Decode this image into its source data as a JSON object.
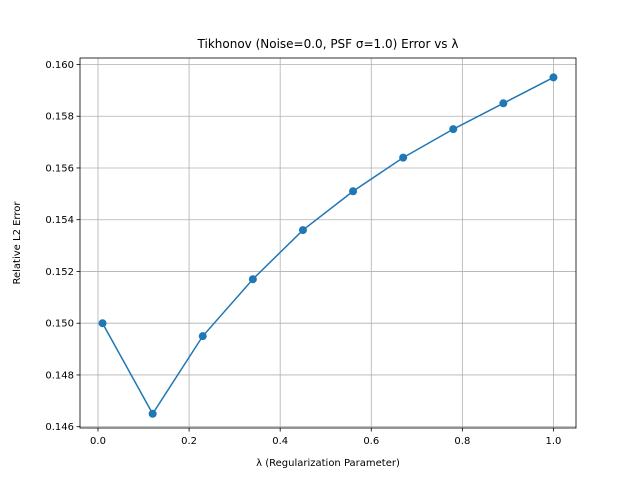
{
  "chart_data": {
    "type": "line",
    "title": "Tikhonov (Noise=0.0, PSF σ=1.0) Error vs λ",
    "xlabel": "λ (Regularization Parameter)",
    "ylabel": "Relative L2 Error",
    "xlim": [
      -0.0395,
      1.0495
    ],
    "ylim": [
      0.14595,
      0.16025
    ],
    "xticks": [
      0.0,
      0.2,
      0.4,
      0.6,
      0.8,
      1.0
    ],
    "xtick_labels": [
      "0.0",
      "0.2",
      "0.4",
      "0.6",
      "0.8",
      "1.0"
    ],
    "yticks": [
      0.146,
      0.148,
      0.15,
      0.152,
      0.154,
      0.156,
      0.158,
      0.16
    ],
    "ytick_labels": [
      "0.146",
      "0.148",
      "0.150",
      "0.152",
      "0.154",
      "0.156",
      "0.158",
      "0.160"
    ],
    "grid": true,
    "series": [
      {
        "color": "#1f77b4",
        "marker": "circle",
        "x": [
          0.01,
          0.12,
          0.23,
          0.34,
          0.45,
          0.56,
          0.67,
          0.78,
          0.89,
          1.0
        ],
        "y": [
          0.15,
          0.1465,
          0.1495,
          0.1517,
          0.1536,
          0.1551,
          0.1564,
          0.1575,
          0.1585,
          0.1595
        ]
      }
    ]
  }
}
